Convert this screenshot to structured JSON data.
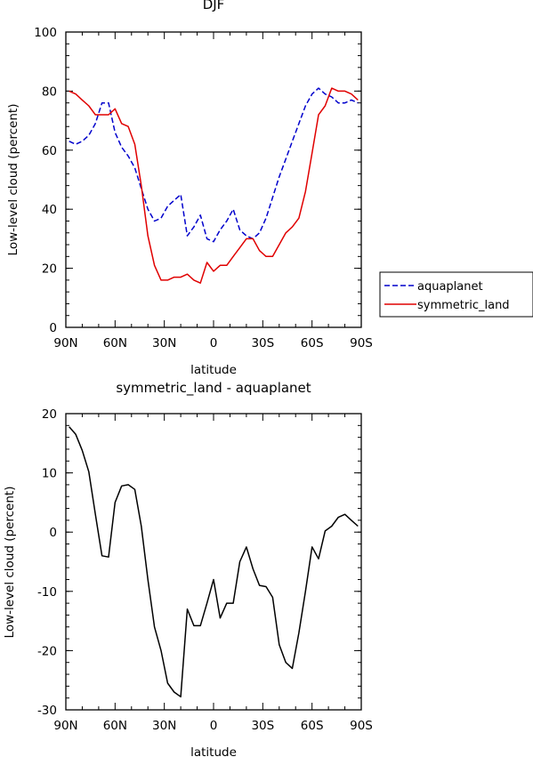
{
  "chart_data": [
    {
      "type": "line",
      "title": "DJF",
      "xlabel": "latitude",
      "ylabel": "Low-level cloud (percent)",
      "x_ticks": [
        "90N",
        "60N",
        "30N",
        "0",
        "30S",
        "60S",
        "90S"
      ],
      "y_ticks": [
        "0",
        "20",
        "40",
        "60",
        "80",
        "100"
      ],
      "xlim": [
        90,
        -90
      ],
      "ylim": [
        0,
        100
      ],
      "x": [
        88,
        84,
        80,
        76,
        72,
        68,
        64,
        60,
        56,
        52,
        48,
        44,
        40,
        36,
        32,
        28,
        24,
        20,
        16,
        12,
        8,
        4,
        0,
        -4,
        -8,
        -12,
        -16,
        -20,
        -24,
        -28,
        -32,
        -36,
        -40,
        -44,
        -48,
        -52,
        -56,
        -60,
        -64,
        -68,
        -72,
        -76,
        -80,
        -84,
        -88
      ],
      "series": [
        {
          "name": "aquaplanet",
          "color": "#0000cc",
          "dash": "dashed",
          "values": [
            63,
            62,
            63,
            65,
            69,
            76,
            76,
            66,
            61,
            58,
            54,
            47,
            40,
            36,
            37,
            41,
            43,
            45,
            31,
            34,
            38,
            30,
            29,
            33,
            36,
            40,
            33,
            31,
            30,
            32,
            37,
            44,
            51,
            57,
            63,
            69,
            75,
            79,
            81,
            79,
            78,
            76,
            76,
            77,
            76
          ]
        },
        {
          "name": "symmetric_land",
          "color": "#e00000",
          "dash": "solid",
          "values": [
            80,
            79,
            77,
            75,
            72,
            72,
            72,
            74,
            69,
            68,
            62,
            48,
            31,
            21,
            16,
            16,
            17,
            17,
            18,
            16,
            15,
            22,
            19,
            21,
            21,
            24,
            27,
            30,
            30,
            26,
            24,
            24,
            28,
            32,
            34,
            37,
            46,
            59,
            72,
            75,
            81,
            80,
            80,
            79,
            77
          ]
        }
      ],
      "legend": {
        "position": "right",
        "entries": [
          "aquaplanet",
          "symmetric_land"
        ]
      }
    },
    {
      "type": "line",
      "title": "symmetric_land - aquaplanet",
      "xlabel": "latitude",
      "ylabel": "Low-level cloud (percent)",
      "x_ticks": [
        "90N",
        "60N",
        "30N",
        "0",
        "30S",
        "60S",
        "90S"
      ],
      "y_ticks": [
        "-30",
        "-20",
        "-10",
        "0",
        "10",
        "20"
      ],
      "xlim": [
        90,
        -90
      ],
      "ylim": [
        -30,
        20
      ],
      "x": [
        88,
        84,
        80,
        76,
        72,
        68,
        64,
        60,
        56,
        52,
        48,
        44,
        40,
        36,
        32,
        28,
        24,
        20,
        16,
        12,
        8,
        4,
        0,
        -4,
        -8,
        -12,
        -16,
        -20,
        -24,
        -28,
        -32,
        -36,
        -40,
        -44,
        -48,
        -52,
        -56,
        -60,
        -64,
        -68,
        -72,
        -76,
        -80,
        -84,
        -88
      ],
      "series": [
        {
          "color": "#000000",
          "dash": "solid",
          "values": [
            17.8,
            16.5,
            13.8,
            10.2,
            3.0,
            -4.0,
            -4.2,
            5.0,
            7.8,
            8.0,
            7.2,
            1.0,
            -8.0,
            -16.0,
            -20.0,
            -25.5,
            -27.0,
            -27.8,
            -13.0,
            -15.8,
            -15.8,
            -12.0,
            -8.0,
            -14.5,
            -12.0,
            -12.0,
            -5.0,
            -2.5,
            -6.2,
            -9.0,
            -9.2,
            -11.0,
            -19.0,
            -22.0,
            -23.0,
            -17.0,
            -10.0,
            -2.5,
            -4.5,
            0.2,
            1.0,
            2.5,
            3.0,
            2.0,
            1.0
          ]
        }
      ]
    }
  ]
}
